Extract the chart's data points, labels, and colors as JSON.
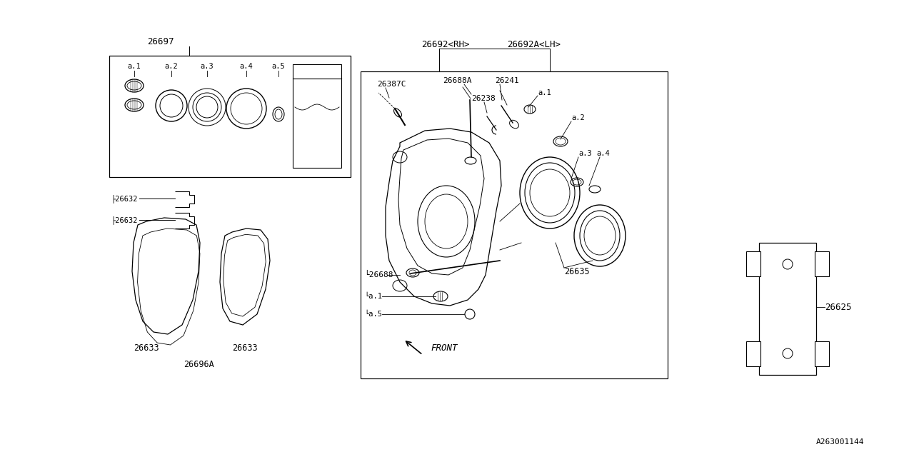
{
  "background_color": "#ffffff",
  "line_color": "#000000",
  "diagram_id": "A263001144",
  "parts": {
    "kit_box_label": "26697",
    "kit_items": [
      "a.1",
      "a.2",
      "a.3",
      "a.4",
      "a.5"
    ],
    "caliper_rh": "26692<RH>",
    "caliper_lh": "26692A<LH>",
    "bleed_screw": "26387C",
    "bolt_a": "26688A",
    "clip": "26241",
    "spring": "26238",
    "sub_a1": "a.1",
    "sub_a2": "a.2",
    "sub_a3": "a.3",
    "sub_a4": "a.4",
    "dust_boot": "26635",
    "pin_bolt": "26688",
    "caliper_sub1": "a.1",
    "caliper_sub5": "a.5",
    "pad_label": "26633",
    "shim_label": "26632",
    "pad_kit_label": "26696A",
    "bracket_label": "26625",
    "front_arrow": "FRONT"
  }
}
